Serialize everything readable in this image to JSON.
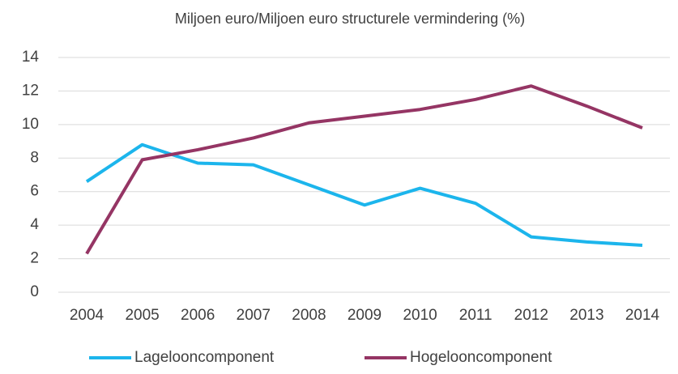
{
  "chart_data": {
    "type": "line",
    "title": "Miljoen euro/Miljoen euro structurele vermindering (%)",
    "categories": [
      "2004",
      "2005",
      "2006",
      "2007",
      "2008",
      "2009",
      "2010",
      "2011",
      "2012",
      "2013",
      "2014"
    ],
    "series": [
      {
        "name": "Lagelooncomponent",
        "color": "#1cb5ec",
        "values": [
          6.6,
          8.8,
          7.7,
          7.6,
          6.4,
          5.2,
          6.2,
          5.3,
          3.3,
          3.0,
          2.8
        ]
      },
      {
        "name": "Hogelooncomponent",
        "color": "#953564",
        "values": [
          2.3,
          7.9,
          8.5,
          9.2,
          10.1,
          10.5,
          10.9,
          11.5,
          12.3,
          11.1,
          9.8
        ]
      }
    ],
    "ylim": [
      0,
      14
    ],
    "yticks": [
      0,
      2,
      4,
      6,
      8,
      10,
      12,
      14
    ],
    "grid": true,
    "legend": "bottom"
  }
}
